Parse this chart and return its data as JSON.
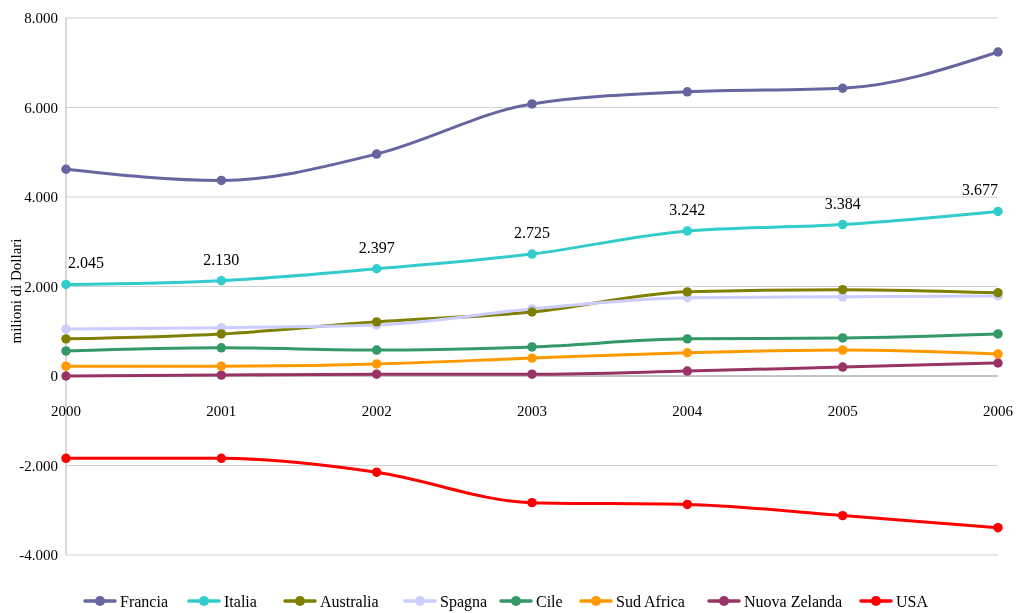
{
  "chart_data": {
    "type": "line",
    "ylabel": "milioni di Dollari",
    "categories": [
      "2000",
      "2001",
      "2002",
      "2003",
      "2004",
      "2005",
      "2006"
    ],
    "ylim": [
      -4000,
      8000
    ],
    "yticks": [
      {
        "value": -4000,
        "label": "-4.000"
      },
      {
        "value": -2000,
        "label": "-2.000"
      },
      0,
      {
        "value": 2000,
        "label": "2.000"
      },
      {
        "value": 4000,
        "label": "4.000"
      },
      {
        "value": 6000,
        "label": "6.000"
      },
      {
        "value": 8000,
        "label": "8.000"
      }
    ],
    "grid": "y",
    "legend": "bottom",
    "marker": "circle",
    "line_style": "solid",
    "series": [
      {
        "name": "Francia",
        "color": "#67659f",
        "values": [
          4620,
          4370,
          4960,
          6080,
          6350,
          6430,
          7240
        ]
      },
      {
        "name": "Italia",
        "color": "#33cccc",
        "values": [
          2045,
          2130,
          2397,
          2725,
          3242,
          3384,
          3677
        ],
        "value_labels": [
          "2.045",
          "2.130",
          "2.397",
          "2.725",
          "3.242",
          "3.384",
          "3.677"
        ]
      },
      {
        "name": "Australia",
        "color": "#808000",
        "values": [
          830,
          940,
          1210,
          1430,
          1880,
          1930,
          1860
        ]
      },
      {
        "name": "Spagna",
        "color": "#ccccff",
        "values": [
          1050,
          1080,
          1140,
          1500,
          1750,
          1770,
          1790
        ]
      },
      {
        "name": "Cile",
        "color": "#339966",
        "values": [
          560,
          630,
          580,
          650,
          830,
          850,
          940
        ]
      },
      {
        "name": "Sud Africa",
        "color": "#ff9900",
        "values": [
          220,
          220,
          270,
          400,
          520,
          580,
          490
        ]
      },
      {
        "name": "Nuova Zelanda",
        "color": "#993366",
        "values": [
          0,
          20,
          40,
          40,
          110,
          200,
          290
        ]
      },
      {
        "name": "USA",
        "color": "#ff0000",
        "values": [
          -1840,
          -1840,
          -2150,
          -2830,
          -2870,
          -3120,
          -3390
        ]
      }
    ]
  }
}
